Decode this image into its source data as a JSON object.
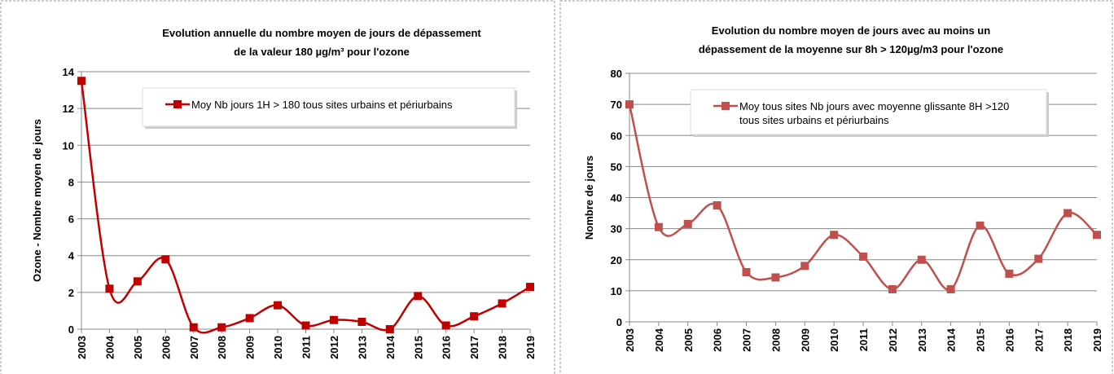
{
  "chart_data": [
    {
      "type": "line",
      "title": [
        "Evolution annuelle du nombre moyen de jours de dépassement",
        "de la valeur 180 µg/m³ pour l'ozone"
      ],
      "y_label": "Ozone - Nombre moyen de jours",
      "categories": [
        "2003",
        "2004",
        "2005",
        "2006",
        "2007",
        "2008",
        "2009",
        "2010",
        "2011",
        "2012",
        "2013",
        "2014",
        "2015",
        "2016",
        "2017",
        "2018",
        "2019"
      ],
      "series": [
        {
          "name": "Moy Nb jours 1H > 180 tous sites urbains et périurbains",
          "color": "#c00000",
          "values": [
            13.5,
            2.2,
            2.6,
            3.8,
            0.1,
            0.1,
            0.6,
            1.3,
            0.2,
            0.5,
            0.4,
            0,
            1.8,
            0.2,
            0.7,
            1.4,
            2.3
          ]
        }
      ],
      "ylim": [
        0,
        14
      ],
      "yticks": [
        0,
        2,
        4,
        6,
        8,
        10,
        12,
        14
      ],
      "grid": true,
      "smooth": true
    },
    {
      "type": "line",
      "title": [
        "Evolution du nombre moyen de jours avec au moins un",
        "dépassement de la moyenne sur 8h > 120µg/m3 pour l'ozone"
      ],
      "y_label": "Nombre de jours",
      "categories": [
        "2003",
        "2004",
        "2005",
        "2006",
        "2007",
        "2008",
        "2009",
        "2010",
        "2011",
        "2012",
        "2013",
        "2014",
        "2015",
        "2016",
        "2017",
        "2018",
        "2019"
      ],
      "series": [
        {
          "name": "Moy tous sites Nb jours avec moyenne glissante 8H >120 tous sites urbains et périurbains",
          "color": "#c0504d",
          "values": [
            70,
            30.5,
            31.5,
            37.5,
            16,
            14.3,
            18,
            28,
            21,
            10.5,
            20,
            10.5,
            31,
            15.5,
            20.3,
            35,
            28
          ]
        }
      ],
      "ylim": [
        0,
        80
      ],
      "yticks": [
        0,
        10,
        20,
        30,
        40,
        50,
        60,
        70,
        80
      ],
      "grid": true,
      "smooth": true
    }
  ]
}
